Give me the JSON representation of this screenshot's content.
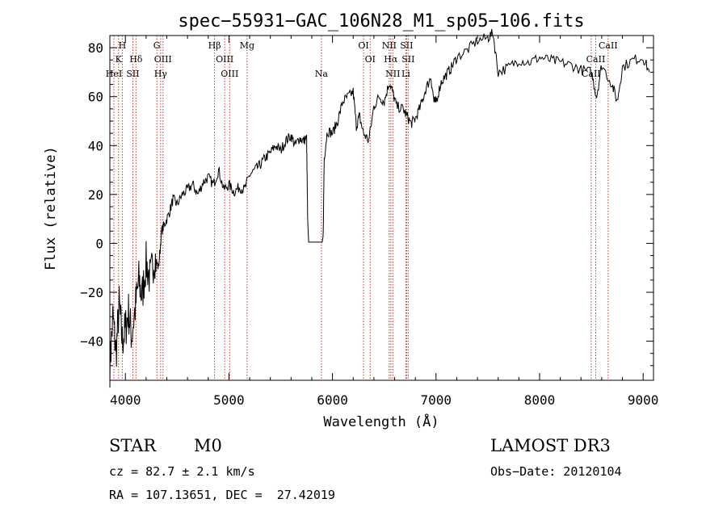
{
  "chart_data": {
    "type": "line",
    "title": "spec−55931−GAC_106N28_M1_sp05−106.fits",
    "xlabel": "Wavelength (Å)",
    "ylabel": "Flux (relative)",
    "xlim": [
      3850,
      9100
    ],
    "ylim": [
      -56,
      85
    ],
    "xticks": [
      4000,
      5000,
      6000,
      7000,
      8000,
      9000
    ],
    "yticks": [
      -40,
      -20,
      0,
      20,
      40,
      60,
      80
    ],
    "grid": false,
    "series": [
      {
        "values_xy": [
          [
            3850,
            -50
          ],
          [
            3880,
            -30
          ],
          [
            3910,
            -45
          ],
          [
            3940,
            -25
          ],
          [
            3970,
            -40
          ],
          [
            4000,
            -35
          ],
          [
            4030,
            -28
          ],
          [
            4060,
            -38
          ],
          [
            4100,
            -25
          ],
          [
            4130,
            -15
          ],
          [
            4160,
            -22
          ],
          [
            4200,
            -8
          ],
          [
            4240,
            -15
          ],
          [
            4280,
            -5
          ],
          [
            4320,
            -10
          ],
          [
            4350,
            5
          ],
          [
            4380,
            8
          ],
          [
            4420,
            12
          ],
          [
            4460,
            18
          ],
          [
            4500,
            16
          ],
          [
            4550,
            20
          ],
          [
            4600,
            22
          ],
          [
            4650,
            24
          ],
          [
            4700,
            20
          ],
          [
            4750,
            25
          ],
          [
            4800,
            27
          ],
          [
            4850,
            24
          ],
          [
            4900,
            30
          ],
          [
            4950,
            22
          ],
          [
            5000,
            24
          ],
          [
            5050,
            21
          ],
          [
            5100,
            23
          ],
          [
            5150,
            22
          ],
          [
            5200,
            28
          ],
          [
            5250,
            30
          ],
          [
            5300,
            32
          ],
          [
            5350,
            35
          ],
          [
            5400,
            37
          ],
          [
            5450,
            40
          ],
          [
            5500,
            38
          ],
          [
            5550,
            42
          ],
          [
            5600,
            44
          ],
          [
            5640,
            40
          ],
          [
            5680,
            43
          ],
          [
            5720,
            42
          ],
          [
            5750,
            43
          ],
          [
            5760,
            10
          ],
          [
            5770,
            0.5
          ],
          [
            5800,
            0.5
          ],
          [
            5850,
            0.5
          ],
          [
            5900,
            0.5
          ],
          [
            5910,
            3
          ],
          [
            5920,
            35
          ],
          [
            5950,
            46
          ],
          [
            6000,
            45
          ],
          [
            6050,
            50
          ],
          [
            6100,
            58
          ],
          [
            6150,
            60
          ],
          [
            6200,
            62
          ],
          [
            6230,
            48
          ],
          [
            6260,
            52
          ],
          [
            6300,
            45
          ],
          [
            6350,
            42
          ],
          [
            6400,
            56
          ],
          [
            6450,
            60
          ],
          [
            6500,
            58
          ],
          [
            6550,
            66
          ],
          [
            6580,
            62
          ],
          [
            6620,
            56
          ],
          [
            6680,
            55
          ],
          [
            6720,
            52
          ],
          [
            6760,
            49
          ],
          [
            6800,
            51
          ],
          [
            6850,
            56
          ],
          [
            6900,
            63
          ],
          [
            6950,
            68
          ],
          [
            6980,
            58
          ],
          [
            7000,
            58
          ],
          [
            7050,
            66
          ],
          [
            7100,
            69
          ],
          [
            7150,
            72
          ],
          [
            7200,
            76
          ],
          [
            7300,
            79
          ],
          [
            7400,
            83
          ],
          [
            7500,
            84
          ],
          [
            7550,
            86
          ],
          [
            7600,
            70
          ],
          [
            7700,
            72
          ],
          [
            7800,
            75
          ],
          [
            7900,
            74
          ],
          [
            8000,
            76
          ],
          [
            8100,
            75
          ],
          [
            8200,
            74
          ],
          [
            8300,
            73
          ],
          [
            8400,
            71
          ],
          [
            8500,
            70
          ],
          [
            8550,
            60
          ],
          [
            8600,
            73
          ],
          [
            8700,
            65
          ],
          [
            8750,
            58
          ],
          [
            8800,
            72
          ],
          [
            8900,
            75
          ],
          [
            9000,
            76
          ],
          [
            9060,
            70
          ]
        ]
      }
    ],
    "lines": [
      {
        "label": "H",
        "x": 3970,
        "row": 1
      },
      {
        "label": "K",
        "x": 3934,
        "row": 2
      },
      {
        "label": "HeI",
        "x": 3889,
        "row": 3
      },
      {
        "label": "SII",
        "x": 4072,
        "row": 3
      },
      {
        "label": "Hδ",
        "x": 4102,
        "row": 2
      },
      {
        "label": "G",
        "x": 4304,
        "row": 1
      },
      {
        "label": "OIII",
        "x": 4363,
        "row": 2
      },
      {
        "label": "Hγ",
        "x": 4340,
        "row": 3
      },
      {
        "label": "Hβ",
        "x": 4861,
        "row": 1
      },
      {
        "label": "OIII",
        "x": 4959,
        "row": 2
      },
      {
        "label": "OIII",
        "x": 5007,
        "row": 3
      },
      {
        "label": "Mg",
        "x": 5175,
        "row": 1
      },
      {
        "label": "Na",
        "x": 5893,
        "row": 3
      },
      {
        "label": "OI",
        "x": 6300,
        "row": 1
      },
      {
        "label": "OI",
        "x": 6364,
        "row": 2
      },
      {
        "label": "NII",
        "x": 6548,
        "row": 1
      },
      {
        "label": "Hα",
        "x": 6563,
        "row": 2
      },
      {
        "label": "NII",
        "x": 6583,
        "row": 3
      },
      {
        "label": "SII",
        "x": 6716,
        "row": 1
      },
      {
        "label": "SII",
        "x": 6731,
        "row": 2
      },
      {
        "label": "Li",
        "x": 6708,
        "row": 3
      },
      {
        "label": "CaII",
        "x": 8662,
        "row": 1
      },
      {
        "label": "CaII",
        "x": 8542,
        "row": 2
      },
      {
        "label": "CaII",
        "x": 8498,
        "row": 3
      }
    ]
  },
  "info": {
    "class": "STAR",
    "subclass": "M0",
    "survey": "LAMOST DR3",
    "cz": "cz = 82.7 ± 2.1 km/s",
    "obs_date": "Obs−Date: 20120104",
    "coords": "RA = 107.13651, DEC =  27.42019"
  },
  "colors": {
    "spectrum": "#000000",
    "line_markers": "#c0392b"
  }
}
